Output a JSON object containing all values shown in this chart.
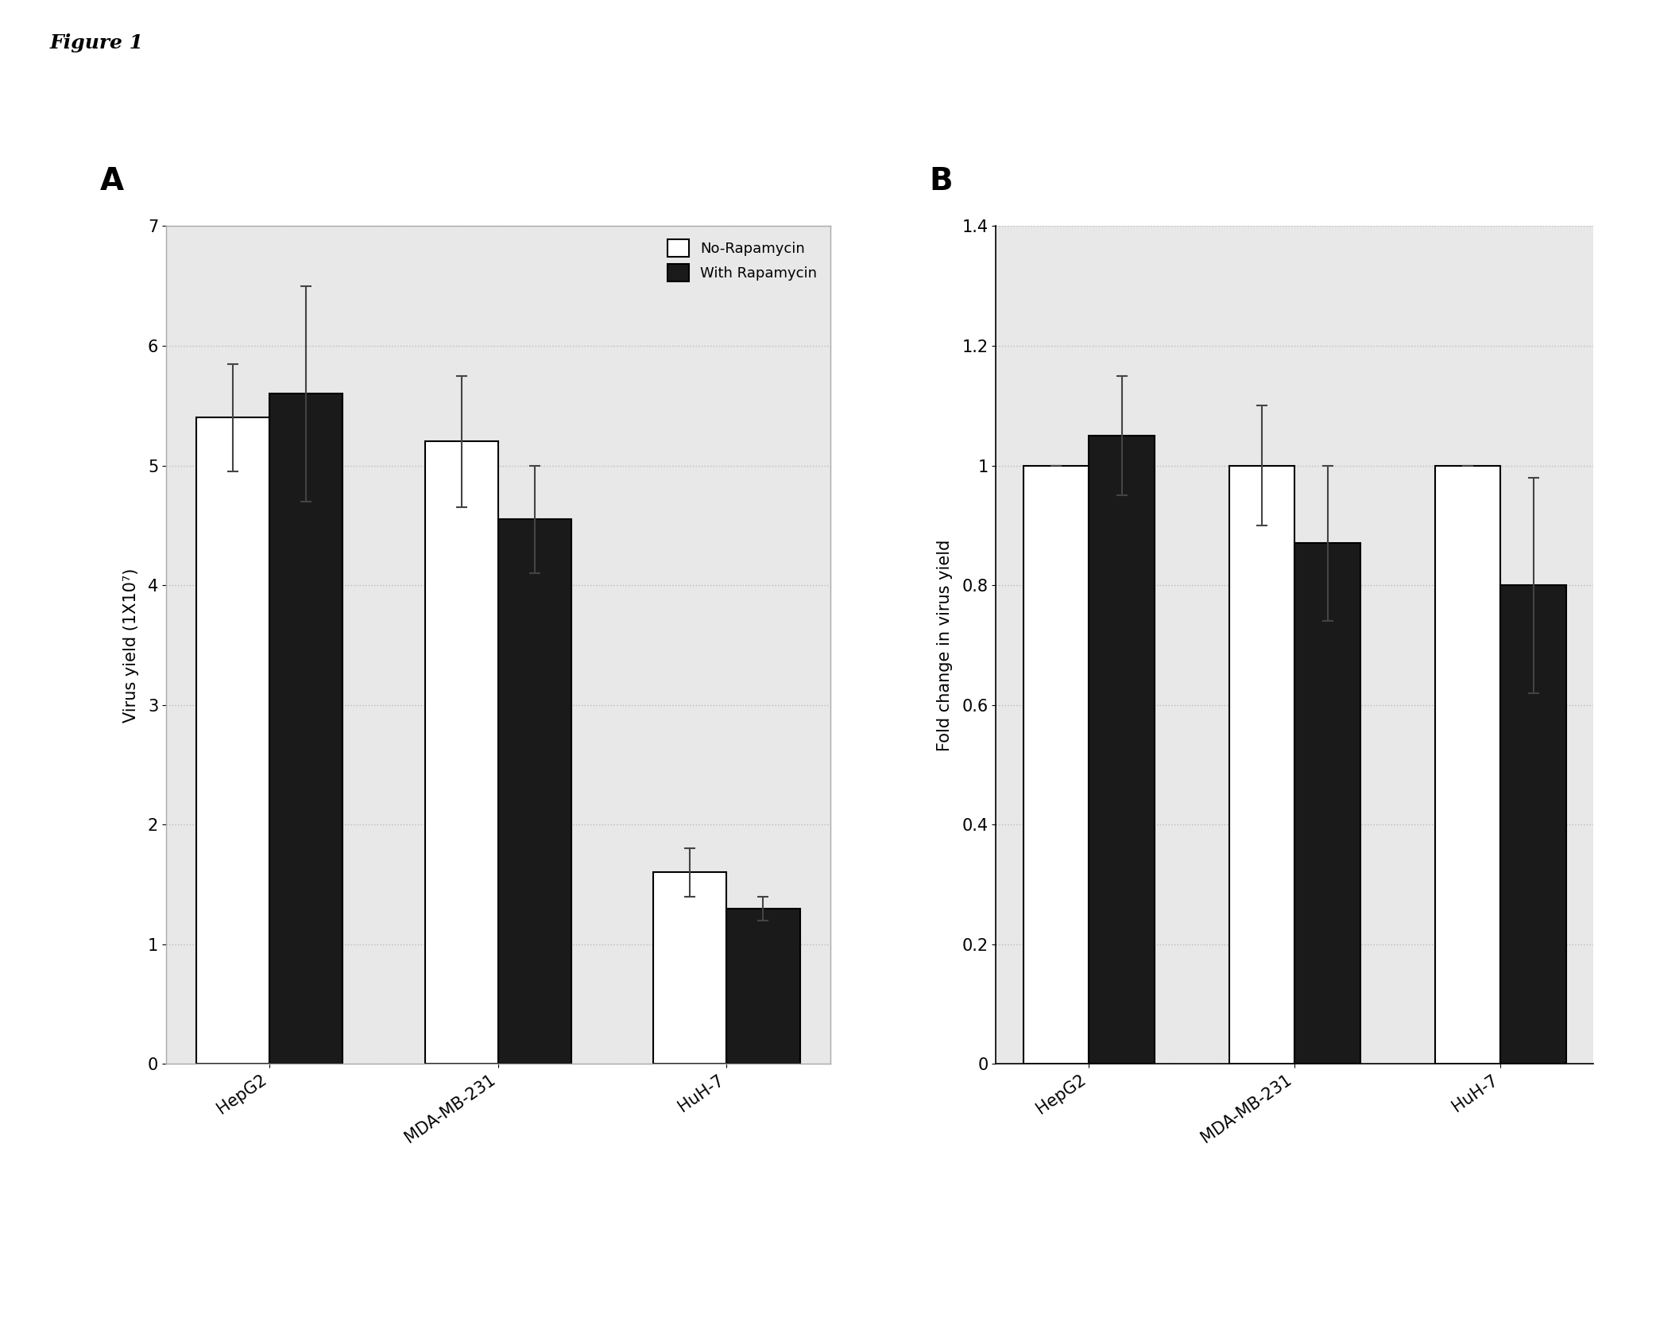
{
  "fig_label": "Figure 1",
  "fig_label_fontsize": 18,
  "background_color": "#ffffff",
  "panel_A": {
    "label": "A",
    "categories": [
      "HepG2",
      "MDA-MB-231",
      "HuH-7"
    ],
    "no_rapa_values": [
      5.4,
      5.2,
      1.6
    ],
    "with_rapa_values": [
      5.6,
      4.55,
      1.3
    ],
    "no_rapa_errors": [
      0.45,
      0.55,
      0.2
    ],
    "with_rapa_errors": [
      0.9,
      0.45,
      0.1
    ],
    "ylabel": "Virus yield (1X10⁷)",
    "ylim": [
      0,
      7
    ],
    "yticks": [
      0,
      1,
      2,
      3,
      4,
      5,
      6,
      7
    ],
    "bar_width": 0.32,
    "no_rapa_color": "#ffffff",
    "with_rapa_color": "#1a1a1a",
    "bar_edgecolor": "#000000",
    "legend_labels": [
      "No-Rapamycin",
      "With Rapamycin"
    ],
    "grid_color": "#bbbbbb",
    "plot_bg_color": "#e8e8e8",
    "box_color": "#aaaaaa",
    "has_box": true
  },
  "panel_B": {
    "label": "B",
    "categories": [
      "HepG2",
      "MDA-MB-231",
      "HuH-7"
    ],
    "no_rapa_values": [
      1.0,
      1.0,
      1.0
    ],
    "with_rapa_values": [
      1.05,
      0.87,
      0.8
    ],
    "no_rapa_errors": [
      0.0,
      0.1,
      0.0
    ],
    "with_rapa_errors": [
      0.1,
      0.13,
      0.18
    ],
    "ylabel": "Fold change in virus yield",
    "ylim": [
      0,
      1.4
    ],
    "yticks": [
      0,
      0.2,
      0.4,
      0.6,
      0.8,
      1.0,
      1.2,
      1.4
    ],
    "bar_width": 0.32,
    "no_rapa_color": "#ffffff",
    "with_rapa_color": "#1a1a1a",
    "bar_edgecolor": "#000000",
    "grid_color": "#bbbbbb",
    "plot_bg_color": "#e8e8e8",
    "has_box": false
  }
}
